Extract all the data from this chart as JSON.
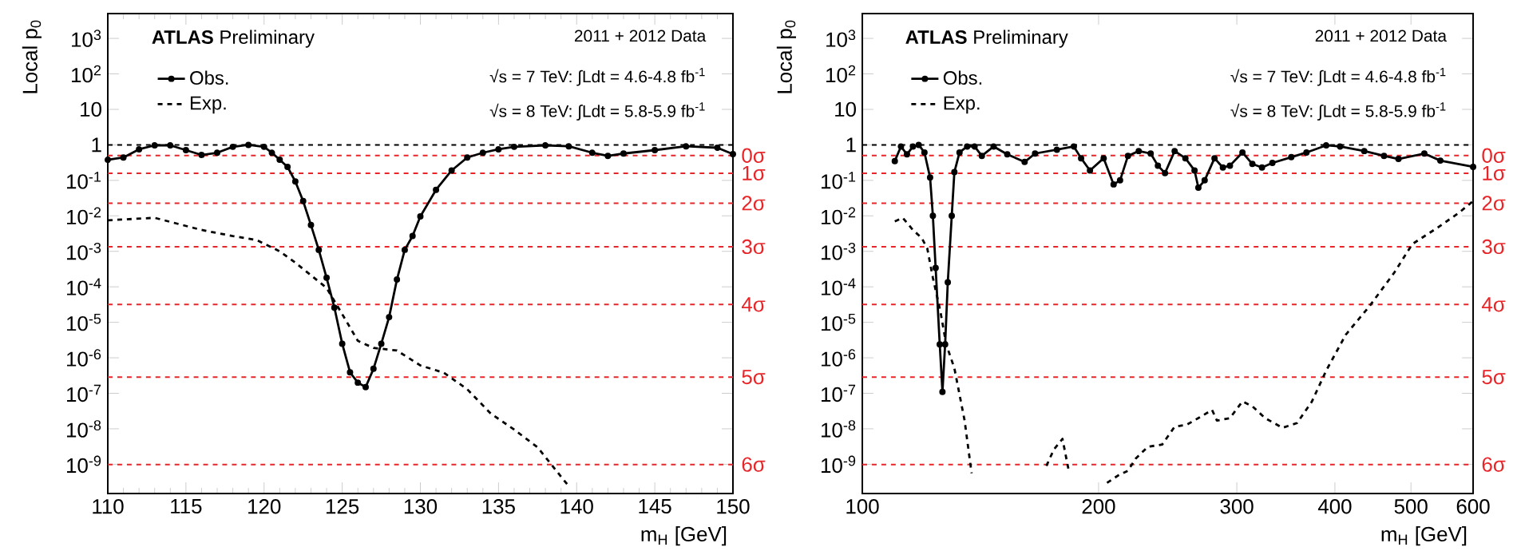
{
  "chart_data": [
    {
      "type": "line",
      "xlabel": "m$_{H}$ [GeV]",
      "ylabel": "Local p$_{0}$",
      "log": "y",
      "legend": "top left",
      "annotations": [
        "**ATLAS** Preliminary",
        "2011 + 2012 Data",
        "√s = 7 TeV: ∫Ldt = 4.6-4.8 fb$^{-1}$",
        "√s = 8 TeV: ∫Ldt = 5.8-5.9 fb$^{-1}$"
      ],
      "xlim": [
        110,
        150
      ],
      "xticks": [
        110,
        115,
        120,
        125,
        130,
        135,
        140,
        145,
        150
      ],
      "ylim": [
        1.5e-10,
        5000
      ],
      "yticks": [
        {
          "value": 1000,
          "label": "10$^{3}$"
        },
        {
          "value": 100,
          "label": "10$^{2}$"
        },
        10,
        1,
        {
          "value": 0.1,
          "label": "10$^{-1}$"
        },
        {
          "value": 0.01,
          "label": "10$^{-2}$"
        },
        {
          "value": 0.001,
          "label": "10$^{-3}$"
        },
        {
          "value": 0.0001,
          "label": "10$^{-4}$"
        },
        {
          "value": 1e-05,
          "label": "10$^{-5}$"
        },
        {
          "value": 1e-06,
          "label": "10$^{-6}$"
        },
        {
          "value": 1e-07,
          "label": "10$^{-7}$"
        },
        {
          "value": 1e-08,
          "label": "10$^{-8}$"
        },
        {
          "value": 1e-09,
          "label": "10$^{-9}$"
        }
      ],
      "ref_lines": [
        {
          "axis": "y",
          "value": 1,
          "color": "#000000",
          "line_style": "dashed"
        },
        {
          "axis": "y",
          "value": 0.5,
          "label": "0σ",
          "color": "#e8262a",
          "line_style": "dashed"
        },
        {
          "axis": "y",
          "value": 0.1587,
          "label": "1σ",
          "color": "#e8262a",
          "line_style": "dashed"
        },
        {
          "axis": "y",
          "value": 0.02275,
          "label": "2σ",
          "color": "#e8262a",
          "line_style": "dashed"
        },
        {
          "axis": "y",
          "value": 0.00135,
          "label": "3σ",
          "color": "#e8262a",
          "line_style": "dashed"
        },
        {
          "axis": "y",
          "value": 3.17e-05,
          "label": "4σ",
          "color": "#e8262a",
          "line_style": "dashed"
        },
        {
          "axis": "y",
          "value": 2.87e-07,
          "label": "5σ",
          "color": "#e8262a",
          "line_style": "dashed"
        },
        {
          "axis": "y",
          "value": 9.87e-10,
          "label": "6σ",
          "color": "#e8262a",
          "line_style": "dashed"
        }
      ],
      "series": [
        {
          "name": "Obs.",
          "color": "#000000",
          "marker": "circle",
          "line_style": "solid",
          "x": [
            110,
            111,
            112,
            113,
            114,
            115,
            116,
            117,
            118,
            119,
            120,
            120.5,
            121,
            121.5,
            122,
            122.5,
            123,
            123.5,
            124,
            124.5,
            125,
            125.5,
            126,
            126.5,
            127,
            127.5,
            128,
            128.5,
            129,
            129.5,
            130,
            131,
            132,
            133,
            134,
            135,
            136,
            138,
            139.5,
            141,
            142,
            143,
            145,
            147,
            149,
            150
          ],
          "values": [
            0.38,
            0.44,
            0.75,
            0.97,
            0.97,
            0.71,
            0.52,
            0.6,
            0.88,
            1.0,
            0.88,
            0.6,
            0.38,
            0.24,
            0.093,
            0.026,
            0.0055,
            0.0011,
            0.00018,
            2.6e-05,
            2.5e-06,
            3.9e-07,
            2e-07,
            1.5e-07,
            4.9e-07,
            2.5e-06,
            1.4e-05,
            0.00016,
            0.0011,
            0.0027,
            0.0096,
            0.054,
            0.19,
            0.44,
            0.6,
            0.75,
            0.88,
            0.97,
            0.91,
            0.6,
            0.49,
            0.57,
            0.71,
            0.91,
            0.83,
            0.55
          ]
        },
        {
          "name": "Exp.",
          "color": "#000000",
          "marker": "none",
          "line_style": "dashed",
          "x": [
            110,
            113,
            116,
            118,
            119.5,
            121,
            122,
            124,
            125,
            126,
            127,
            128.5,
            130,
            131.5,
            133,
            134.5,
            136,
            137.5,
            139,
            139.5
          ],
          "values": [
            0.0075,
            0.0088,
            0.004,
            0.0027,
            0.0021,
            0.001,
            0.00048,
            9.3e-05,
            1.7e-05,
            3e-06,
            1.9e-06,
            1.6e-06,
            6.1e-07,
            3.8e-07,
            1.3e-07,
            2.7e-08,
            9.5e-09,
            3e-09,
            4.5e-10,
            2.4e-10
          ]
        }
      ]
    },
    {
      "type": "line",
      "xlabel": "m$_{H}$ [GeV]",
      "ylabel": "Local p$_{0}$",
      "log": "xy",
      "legend": "top left",
      "annotations": [
        "**ATLAS** Preliminary",
        "2011 + 2012 Data",
        "√s = 7 TeV: ∫Ldt = 4.6-4.8 fb$^{-1}$",
        "√s = 8 TeV: ∫Ldt = 5.8-5.9 fb$^{-1}$"
      ],
      "xlim": [
        100,
        600
      ],
      "xticks": [
        100,
        200,
        300,
        400,
        500,
        600
      ],
      "ylim": [
        1.5e-10,
        5000
      ],
      "yticks": [
        {
          "value": 1000,
          "label": "10$^{3}$"
        },
        {
          "value": 100,
          "label": "10$^{2}$"
        },
        10,
        1,
        {
          "value": 0.1,
          "label": "10$^{-1}$"
        },
        {
          "value": 0.01,
          "label": "10$^{-2}$"
        },
        {
          "value": 0.001,
          "label": "10$^{-3}$"
        },
        {
          "value": 0.0001,
          "label": "10$^{-4}$"
        },
        {
          "value": 1e-05,
          "label": "10$^{-5}$"
        },
        {
          "value": 1e-06,
          "label": "10$^{-6}$"
        },
        {
          "value": 1e-07,
          "label": "10$^{-7}$"
        },
        {
          "value": 1e-08,
          "label": "10$^{-8}$"
        },
        {
          "value": 1e-09,
          "label": "10$^{-9}$"
        }
      ],
      "ref_lines": [
        {
          "axis": "y",
          "value": 1,
          "color": "#000000",
          "line_style": "dashed"
        },
        {
          "axis": "y",
          "value": 0.5,
          "label": "0σ",
          "color": "#e8262a",
          "line_style": "dashed"
        },
        {
          "axis": "y",
          "value": 0.1587,
          "label": "1σ",
          "color": "#e8262a",
          "line_style": "dashed"
        },
        {
          "axis": "y",
          "value": 0.02275,
          "label": "2σ",
          "color": "#e8262a",
          "line_style": "dashed"
        },
        {
          "axis": "y",
          "value": 0.00135,
          "label": "3σ",
          "color": "#e8262a",
          "line_style": "dashed"
        },
        {
          "axis": "y",
          "value": 3.17e-05,
          "label": "4σ",
          "color": "#e8262a",
          "line_style": "dashed"
        },
        {
          "axis": "y",
          "value": 2.87e-07,
          "label": "5σ",
          "color": "#e8262a",
          "line_style": "dashed"
        },
        {
          "axis": "y",
          "value": 9.87e-10,
          "label": "6σ",
          "color": "#e8262a",
          "line_style": "dashed"
        }
      ],
      "series": [
        {
          "name": "Obs.",
          "color": "#000000",
          "marker": "circle",
          "line_style": "solid",
          "x": [
            110,
            112,
            114,
            116,
            118,
            120,
            122,
            123,
            124,
            125.5,
            126.5,
            127.5,
            128.5,
            130,
            131,
            133,
            136,
            139,
            142,
            147,
            153,
            161,
            166,
            177,
            186,
            190,
            195,
            203,
            209,
            213,
            218,
            225,
            233,
            238,
            243,
            250,
            258,
            265,
            268,
            273,
            281,
            288,
            294,
            305,
            314,
            323,
            333,
            352,
            368,
            390,
            406,
            436,
            462,
            482,
            520,
            545,
            600
          ],
          "values": [
            0.35,
            0.9,
            0.54,
            0.9,
            1.0,
            0.61,
            0.12,
            0.01,
            0.00034,
            2.4e-06,
            1.1e-07,
            2.4e-06,
            0.000135,
            0.01,
            0.17,
            0.61,
            0.9,
            0.9,
            0.49,
            0.9,
            0.54,
            0.33,
            0.57,
            0.73,
            0.9,
            0.42,
            0.19,
            0.42,
            0.077,
            0.1,
            0.49,
            0.67,
            0.57,
            0.26,
            0.16,
            0.67,
            0.42,
            0.19,
            0.062,
            0.1,
            0.42,
            0.23,
            0.26,
            0.61,
            0.29,
            0.23,
            0.31,
            0.45,
            0.61,
            0.97,
            0.9,
            0.67,
            0.49,
            0.4,
            0.57,
            0.36,
            0.24
          ]
        },
        {
          "name": "Exp.",
          "color": "#000000",
          "marker": "none",
          "line_style": "dashed",
          "x": [
            110,
            112.6,
            116,
            119,
            121,
            123,
            125.7,
            127.9,
            131,
            135,
            137.8,
            150,
            171.6,
            175.4,
            179.9,
            183.5,
            195,
            205,
            212,
            218,
            223,
            231,
            241,
            250,
            259,
            268,
            279,
            283,
            294,
            305,
            314,
            326,
            343,
            358,
            374,
            390,
            413,
            443,
            476,
            502,
            541,
            575,
            600
          ],
          "values": [
            0.007,
            0.0088,
            0.004,
            0.0024,
            0.0012,
            0.00018,
            2.1e-05,
            2.4e-06,
            5.1e-07,
            1.7e-08,
            5.6e-10,
            null,
            9e-10,
            2.6e-09,
            5.2e-09,
            5.6e-10,
            null,
            3e-10,
            4.9e-10,
            6.6e-10,
            1.45e-09,
            3.1e-09,
            3.6e-09,
            1.15e-08,
            1.3e-08,
            2e-08,
            3.4e-08,
            1.7e-08,
            2e-08,
            5.9e-08,
            4.3e-08,
            2e-08,
            1.07e-08,
            1.45e-08,
            5.9e-08,
            4.4e-07,
            4.5e-06,
            2.9e-05,
            0.00025,
            0.0016,
            0.0047,
            0.012,
            0.026
          ]
        }
      ]
    }
  ]
}
